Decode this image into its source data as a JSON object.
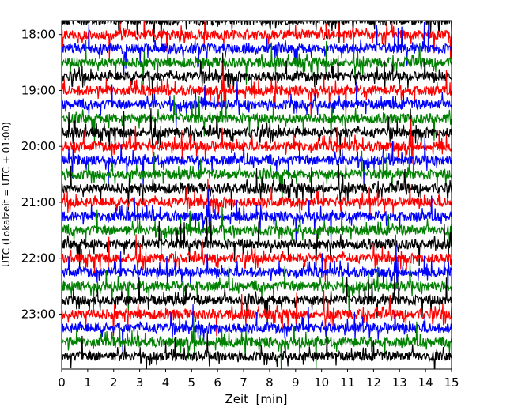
{
  "chart_data": {
    "type": "line",
    "title": "",
    "xlabel": "Zeit  [min]",
    "ylabel": "UTC (Lokalzeit = UTC + 01:00)",
    "xlim": [
      0,
      15
    ],
    "x_ticks": [
      "0",
      "1",
      "2",
      "3",
      "4",
      "5",
      "6",
      "7",
      "8",
      "9",
      "10",
      "11",
      "12",
      "13",
      "14",
      "15"
    ],
    "y_ticks": [
      "18:00",
      "19:00",
      "20:00",
      "21:00",
      "22:00",
      "23:00"
    ],
    "time_range": [
      "17:45",
      "23:59"
    ],
    "trace_interval_min": 15,
    "trace_colors": [
      "#000000",
      "#ff0000",
      "#0000ff",
      "#008000"
    ],
    "grid": false,
    "legend": "none"
  }
}
